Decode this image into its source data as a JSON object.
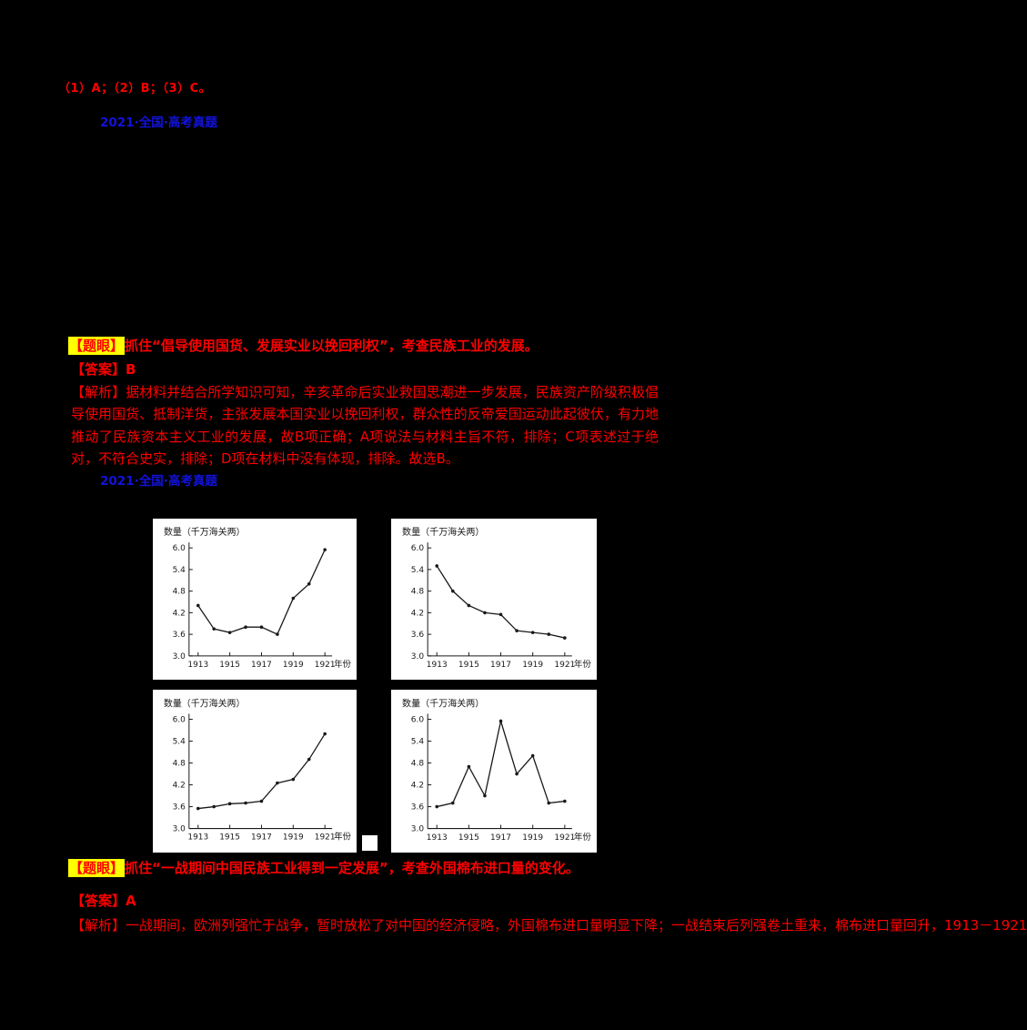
{
  "doc": {
    "top_answer": "（1）A；（2）B；（3）C。",
    "source_link_1": "2021·全国·高考真题",
    "source_link_2": "2021·全国·高考真题",
    "q1": {
      "tiyan_label": "【题眼】",
      "tiyan_text": "抓住“倡导使用国货、发展实业以挽回利权”，考查民族工业的发展。",
      "answer": "【答案】B",
      "jiexi": "【解析】据材料并结合所学知识可知，辛亥革命后实业救国思潮进一步发展，民族资产阶级积极倡导使用国货、抵制洋货，主张发展本国实业以挽回利权，群众性的反帝爱国运动此起彼伏，有力地推动了民族资本主义工业的发展，故B项正确；A项说法与材料主旨不符，排除；C项表述过于绝对，不符合史实，排除；D项在材料中没有体现，排除。故选B。"
    },
    "q2": {
      "tiyan_label": "【题眼】",
      "tiyan_text": "抓住“一战期间中国民族工业得到一定发展”，考查外国棉布进口量的变化。",
      "answer": "【答案】A",
      "jiexi": "【解析】一战期间，欧洲列强忙于战争，暂时放松了对中国的经济侵略，外国棉布进口量明显下降；一战结束后列强卷土重来，棉布进口量回升，1913－1921"
    }
  },
  "colors": {
    "background": "#000000",
    "text_red": "#FF0000",
    "link_blue": "#1212DD",
    "highlight_yellow": "#FFFF00",
    "chart_bg": "#FFFFFF",
    "chart_ink": "#1A1A1A"
  },
  "chart_data": [
    {
      "type": "line",
      "position": "top-left",
      "title": "数量（千万海关两）",
      "xlabel": "年份",
      "x": [
        1913,
        1914,
        1915,
        1916,
        1917,
        1918,
        1919,
        1920,
        1921
      ],
      "values": [
        4.4,
        3.75,
        3.65,
        3.8,
        3.8,
        3.6,
        4.6,
        5.0,
        5.95
      ],
      "ylim": [
        3.0,
        6.0
      ],
      "yticks": [
        3.0,
        3.6,
        4.2,
        4.8,
        5.4,
        6.0
      ],
      "xticks": [
        1913,
        1915,
        1917,
        1919,
        1921
      ],
      "grid": false,
      "legend": "none"
    },
    {
      "type": "line",
      "position": "top-right",
      "title": "数量（千万海关两）",
      "xlabel": "年份",
      "x": [
        1913,
        1914,
        1915,
        1916,
        1917,
        1918,
        1919,
        1920,
        1921
      ],
      "values": [
        5.5,
        4.8,
        4.4,
        4.2,
        4.15,
        3.7,
        3.65,
        3.6,
        3.5
      ],
      "ylim": [
        3.0,
        6.0
      ],
      "yticks": [
        3.0,
        3.6,
        4.2,
        4.8,
        5.4,
        6.0
      ],
      "xticks": [
        1913,
        1915,
        1917,
        1919,
        1921
      ],
      "grid": false,
      "legend": "none"
    },
    {
      "type": "line",
      "position": "bottom-left",
      "title": "数量（千万海关两）",
      "xlabel": "年份",
      "x": [
        1913,
        1914,
        1915,
        1916,
        1917,
        1918,
        1919,
        1920,
        1921
      ],
      "values": [
        3.55,
        3.6,
        3.68,
        3.7,
        3.75,
        4.25,
        4.35,
        4.9,
        5.6
      ],
      "ylim": [
        3.0,
        6.0
      ],
      "yticks": [
        3.0,
        3.6,
        4.2,
        4.8,
        5.4,
        6.0
      ],
      "xticks": [
        1913,
        1915,
        1917,
        1919,
        1921
      ],
      "grid": false,
      "legend": "none"
    },
    {
      "type": "line",
      "position": "bottom-right",
      "title": "数量（千万海关两）",
      "xlabel": "年份",
      "x": [
        1913,
        1914,
        1915,
        1916,
        1917,
        1918,
        1919,
        1920,
        1921
      ],
      "values": [
        3.6,
        3.7,
        4.7,
        3.9,
        5.95,
        4.5,
        5.0,
        3.7,
        3.75
      ],
      "ylim": [
        3.0,
        6.0
      ],
      "yticks": [
        3.0,
        3.6,
        4.2,
        4.8,
        5.4,
        6.0
      ],
      "xticks": [
        1913,
        1915,
        1917,
        1919,
        1921
      ],
      "grid": false,
      "legend": "none"
    }
  ]
}
